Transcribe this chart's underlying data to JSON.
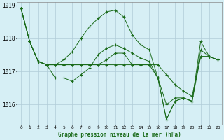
{
  "xlabel": "Graphe pression niveau de la mer (hPa)",
  "background_color": "#d6eff5",
  "plot_bg_color": "#d6eff5",
  "grid_color": "#b0ccd8",
  "line_color": "#1a6b1a",
  "marker_color": "#1a6b1a",
  "x_ticks": [
    0,
    1,
    2,
    3,
    4,
    5,
    6,
    7,
    8,
    9,
    10,
    11,
    12,
    13,
    14,
    15,
    16,
    17,
    18,
    19,
    20,
    21,
    22,
    23
  ],
  "ylim": [
    1015.4,
    1019.1
  ],
  "y_ticks": [
    1016,
    1017,
    1018,
    1019
  ],
  "series": [
    [
      1018.9,
      1017.9,
      1017.3,
      1017.2,
      1016.8,
      1016.8,
      1016.7,
      1016.9,
      1017.1,
      1017.5,
      1017.7,
      1017.8,
      1017.7,
      1017.55,
      1017.4,
      1017.3,
      1016.8,
      1015.55,
      1016.1,
      1016.2,
      1016.1,
      1017.65,
      1017.45,
      1017.35
    ],
    [
      1018.9,
      1017.9,
      1017.3,
      1017.2,
      1017.2,
      1017.2,
      1017.2,
      1017.2,
      1017.2,
      1017.2,
      1017.2,
      1017.2,
      1017.2,
      1017.2,
      1017.2,
      1017.2,
      1017.2,
      1016.9,
      1016.6,
      1016.4,
      1016.25,
      1017.45,
      1017.45,
      1017.35
    ],
    [
      1018.9,
      1017.9,
      1017.3,
      1017.2,
      1017.2,
      1017.2,
      1017.2,
      1017.2,
      1017.2,
      1017.2,
      1017.35,
      1017.55,
      1017.55,
      1017.2,
      1017.2,
      1017.2,
      1016.8,
      1016.0,
      1016.2,
      1016.2,
      1016.1,
      1017.45,
      1017.45,
      1017.35
    ],
    [
      1018.9,
      1017.9,
      1017.3,
      1017.2,
      1017.2,
      1017.35,
      1017.6,
      1018.0,
      1018.35,
      1018.6,
      1018.8,
      1018.85,
      1018.65,
      1018.1,
      1017.8,
      1017.65,
      1016.8,
      1015.55,
      1016.1,
      1016.2,
      1016.1,
      1017.9,
      1017.45,
      1017.35
    ]
  ]
}
